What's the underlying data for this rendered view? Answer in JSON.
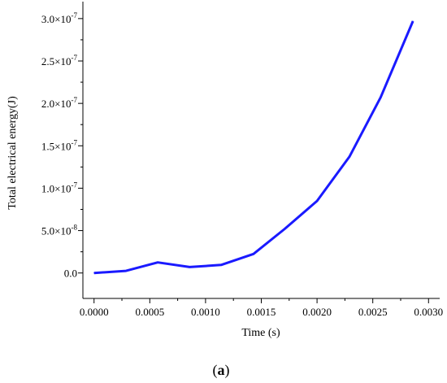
{
  "chart_data": {
    "type": "line",
    "title": "",
    "xlabel": "Time (s)",
    "ylabel": "Total electrical energy(J)",
    "xlim": [
      -0.0001,
      0.0031
    ],
    "ylim": [
      -3e-08,
      3.2e-07
    ],
    "xticks": [
      0.0,
      0.0005,
      0.001,
      0.0015,
      0.002,
      0.0025,
      0.003
    ],
    "xtick_labels": [
      "0.0000",
      "0.0005",
      "0.0010",
      "0.0015",
      "0.0020",
      "0.0025",
      "0.0030"
    ],
    "yticks": [
      0.0,
      5e-08,
      1e-07,
      1.5e-07,
      2e-07,
      2.5e-07,
      3e-07
    ],
    "ytick_labels": [
      {
        "mant": "0.0",
        "exp": ""
      },
      {
        "mant": "5.0×10",
        "exp": "-8"
      },
      {
        "mant": "1.0×10",
        "exp": "-7"
      },
      {
        "mant": "1.5×10",
        "exp": "-7"
      },
      {
        "mant": "2.0×10",
        "exp": "-7"
      },
      {
        "mant": "2.5×10",
        "exp": "-7"
      },
      {
        "mant": "3.0×10",
        "exp": "-7"
      }
    ],
    "grid": false,
    "series": [
      {
        "color": "#1a1aff",
        "x": [
          0.0,
          0.000286,
          0.000571,
          0.000857,
          0.00114,
          0.00143,
          0.00171,
          0.002,
          0.00229,
          0.00257,
          0.00286
        ],
        "y": [
          0.0,
          2.5e-09,
          1.25e-08,
          7e-09,
          9.5e-09,
          2.25e-08,
          5.2e-08,
          8.5e-08,
          1.37e-07,
          2.07e-07,
          2.97e-07
        ]
      }
    ]
  },
  "caption": {
    "open": "(",
    "letter": "a",
    "close": ")"
  }
}
